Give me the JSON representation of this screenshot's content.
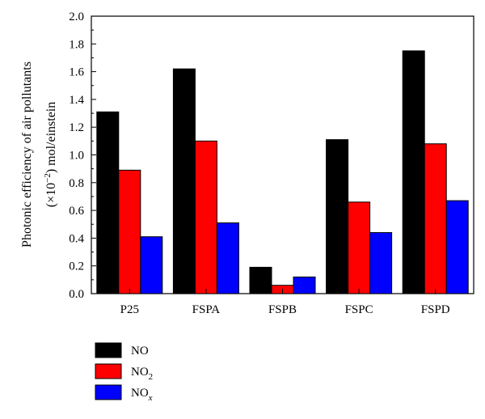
{
  "chart_data": {
    "type": "bar",
    "title": "",
    "xlabel": "",
    "ylabel_line1": "Photonic efficiency of air pollutants",
    "ylabel_line2_prefix": "(×10",
    "ylabel_line2_exp": "−2",
    "ylabel_line2_suffix": ") mol/einstein",
    "ylim": [
      0.0,
      2.0
    ],
    "yticks": [
      "0.0",
      "0.2",
      "0.4",
      "0.6",
      "0.8",
      "1.0",
      "1.2",
      "1.4",
      "1.6",
      "1.8",
      "2.0"
    ],
    "categories": [
      "P25",
      "FSPA",
      "FSPB",
      "FSPC",
      "FSPD"
    ],
    "series": [
      {
        "name": "NO",
        "name_base": "NO",
        "name_sub": "",
        "sub_italic": false,
        "color": "#000000",
        "values": [
          1.31,
          1.62,
          0.19,
          1.11,
          1.75
        ]
      },
      {
        "name": "NO2",
        "name_base": "NO",
        "name_sub": "2",
        "sub_italic": false,
        "color": "#ff0000",
        "values": [
          0.89,
          1.1,
          0.06,
          0.66,
          1.08
        ]
      },
      {
        "name": "NOx",
        "name_base": "NO",
        "name_sub": "x",
        "sub_italic": true,
        "color": "#0000ff",
        "values": [
          0.41,
          0.51,
          0.12,
          0.44,
          0.67
        ]
      }
    ],
    "legend_position": "bottom-left, below plot",
    "grid": false
  }
}
